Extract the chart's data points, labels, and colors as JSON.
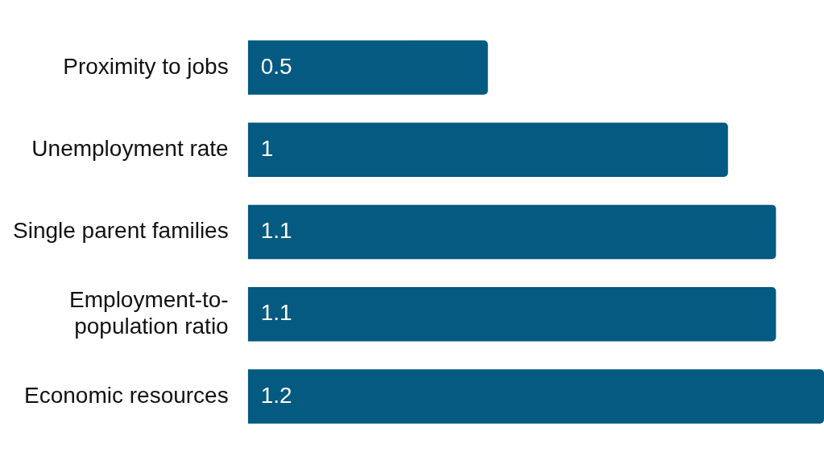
{
  "chart_data": {
    "type": "bar",
    "orientation": "horizontal",
    "categories": [
      "Proximity to jobs",
      "Unemployment rate",
      "Single parent families",
      "Employment-to-population ratio",
      "Economic resources"
    ],
    "values": [
      0.5,
      1,
      1.1,
      1.1,
      1.2
    ],
    "color": "#045a80",
    "data_labels": true,
    "xlim": [
      0,
      1.2
    ]
  }
}
